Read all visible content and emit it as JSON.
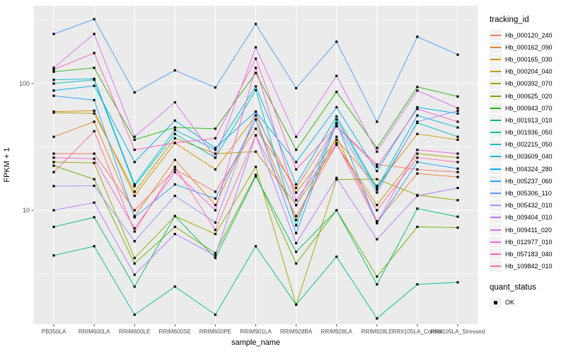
{
  "figure": {
    "panel_background": "#EBEBEB",
    "grid_color": "#FFFFFF",
    "tick_color": "#333333",
    "axis_text_color": "#4D4D4D",
    "point_color": "#000000"
  },
  "legend": {
    "tracking_title": "tracking_id",
    "quant_title": "quant_status",
    "quant_items": [
      {
        "label": "OK"
      }
    ]
  },
  "chart_data": {
    "type": "line",
    "title": "",
    "xlabel": "sample_name",
    "ylabel": "FPKM + 1",
    "y_scale": "log10",
    "y_major_ticks": [
      10,
      100
    ],
    "y_minor_ticks": [
      3.162,
      31.62,
      316.2
    ],
    "ylim": [
      1.2,
      412
    ],
    "grid": true,
    "legend_position": "right",
    "point_shape": "filled-square",
    "categories": [
      "PB350LA",
      "RRIM600LA",
      "RRIM600LE",
      "RRIM600SE",
      "RRIM600PE",
      "RRIM901LA",
      "RRIM928BA",
      "RRIM928LA",
      "RRIM928LE",
      "RRII105LA_Control",
      "RRII105LA_Stressed"
    ],
    "series": [
      {
        "name": "Hb_000120_240",
        "color": "#F8766D",
        "values": [
          28,
          28,
          10,
          21,
          14,
          44,
          15,
          46,
          23,
          21,
          20
        ]
      },
      {
        "name": "Hb_000162_090",
        "color": "#E88526",
        "values": [
          38,
          50,
          9,
          25,
          11,
          52,
          8.4,
          38,
          8.2,
          19.5,
          18.3
        ]
      },
      {
        "name": "Hb_000165_030",
        "color": "#D69100",
        "values": [
          60,
          61,
          13,
          34,
          21,
          56,
          13.8,
          36,
          15.6,
          40,
          36
        ]
      },
      {
        "name": "Hb_000204_040",
        "color": "#BE9C00",
        "values": [
          59,
          58,
          14,
          37,
          28,
          29,
          11,
          33,
          11,
          28,
          26
        ]
      },
      {
        "name": "Hb_000392_070",
        "color": "#9DA700",
        "values": [
          24,
          23.6,
          4.2,
          9,
          6.5,
          22,
          1.8,
          17.5,
          17.6,
          13.2,
          12
        ]
      },
      {
        "name": "Hb_000625_020",
        "color": "#6EB100",
        "values": [
          22.5,
          17.6,
          3.8,
          7.4,
          4.6,
          19,
          3.8,
          10,
          3.0,
          7.4,
          7.3
        ]
      },
      {
        "name": "Hb_000943_070",
        "color": "#21B700",
        "values": [
          124,
          133,
          36,
          45,
          44,
          121,
          30,
          86,
          31,
          94,
          79
        ]
      },
      {
        "name": "Hb_001913_010",
        "color": "#00BE67",
        "values": [
          7.4,
          8.8,
          2.5,
          9,
          4.2,
          18.5,
          4.7,
          10,
          2.6,
          10.3,
          8.9
        ]
      },
      {
        "name": "Hb_001936_050",
        "color": "#00C092",
        "values": [
          4.4,
          5.2,
          1.5,
          2.5,
          1.5,
          5.2,
          1.8,
          4.3,
          1.4,
          2.6,
          2.7
        ]
      },
      {
        "name": "Hb_002215_050",
        "color": "#00BFBB",
        "values": [
          100,
          107,
          15.5,
          40,
          26,
          89,
          7.6,
          52,
          14.5,
          49,
          38
        ]
      },
      {
        "name": "Hb_003609_040",
        "color": "#00BBDB",
        "values": [
          107,
          109,
          16,
          43,
          30,
          95,
          16,
          55,
          15,
          56,
          45
        ]
      },
      {
        "name": "Hb_004324_280",
        "color": "#00B1F2",
        "values": [
          88,
          96,
          24,
          51,
          31,
          60,
          24,
          65,
          20.4,
          65,
          58
        ]
      },
      {
        "name": "Hb_005237_060",
        "color": "#2CA4FF",
        "values": [
          80,
          74,
          8.8,
          16,
          12.4,
          52,
          6.6,
          49,
          7.9,
          24,
          21.3
        ]
      },
      {
        "name": "Hb_005306_110",
        "color": "#4E9EFF",
        "values": [
          246,
          322,
          85,
          127,
          93,
          295,
          92,
          214,
          50,
          234,
          169
        ]
      },
      {
        "name": "Hb_005432_010",
        "color": "#9795FF",
        "values": [
          15.5,
          15.6,
          5.7,
          13,
          8,
          60,
          11,
          47,
          13.8,
          50,
          61
        ]
      },
      {
        "name": "Hb_009404_010",
        "color": "#B879FF",
        "values": [
          10,
          11.5,
          3.1,
          6.5,
          4.4,
          39,
          5.5,
          18,
          5.9,
          13,
          15
        ]
      },
      {
        "name": "Hb_009411_020",
        "color": "#E06EF7",
        "values": [
          133,
          246,
          38,
          71,
          26,
          193,
          38,
          115,
          29,
          88,
          64
        ]
      },
      {
        "name": "Hb_012977_010",
        "color": "#F45FE3",
        "values": [
          26,
          25.5,
          7.2,
          20,
          10,
          133,
          12,
          34,
          8,
          30,
          28
        ]
      },
      {
        "name": "Hb_057183_040",
        "color": "#FF61C3",
        "values": [
          129,
          174,
          30,
          34,
          37,
          157,
          21,
          46,
          22,
          63,
          50
        ]
      },
      {
        "name": "Hb_109842_010",
        "color": "#FF6B9A",
        "values": [
          20,
          42,
          6.8,
          22,
          7,
          39,
          9,
          33,
          10,
          26,
          24
        ]
      }
    ]
  }
}
